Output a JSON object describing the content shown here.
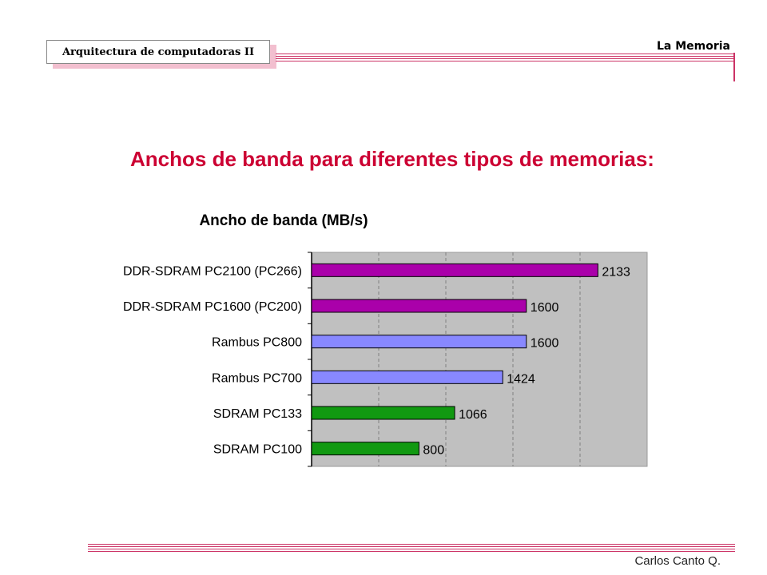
{
  "header": {
    "course": "Arquitectura de computadoras II",
    "section": "La Memoria"
  },
  "slide": {
    "title": "Anchos de banda para diferentes tipos de memorias:"
  },
  "footer": {
    "author": "Carlos Canto Q."
  },
  "colors": {
    "accent_rule": "#cc3366",
    "title_red": "#cc0033",
    "plot_bg": "#c0c0c0",
    "ddr": "#aa00aa",
    "rambus": "#8888ff",
    "sdram": "#119911"
  },
  "chart_data": {
    "type": "bar",
    "orientation": "horizontal",
    "title": "Ancho de banda (MB/s)",
    "categories": [
      "DDR-SDRAM PC2100 (PC266)",
      "DDR-SDRAM PC1600 (PC200)",
      "Rambus PC800",
      "Rambus PC700",
      "SDRAM PC133",
      "SDRAM PC100"
    ],
    "values": [
      2133,
      1600,
      1600,
      1424,
      1066,
      800
    ],
    "data_labels": [
      "2133",
      "1600",
      "1600",
      "1424",
      "1066",
      "800"
    ],
    "bar_colors": [
      "#aa00aa",
      "#aa00aa",
      "#8888ff",
      "#8888ff",
      "#119911",
      "#119911"
    ],
    "xlim": [
      0,
      2500
    ],
    "grid_step": 500,
    "grid": true,
    "legend": "none"
  }
}
